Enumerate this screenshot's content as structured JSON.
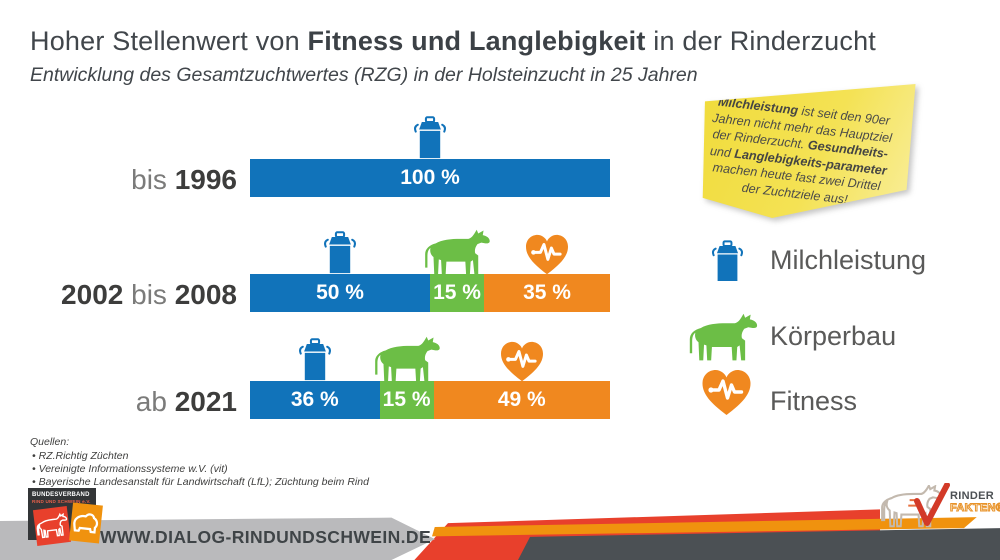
{
  "header": {
    "title_prefix": "Hoher Stellenwert von ",
    "title_bold": "Fitness und Langlebigkeit",
    "title_suffix": " in der Rinderzucht",
    "subtitle": "Entwicklung des Gesamtzuchtwertes (RZG) in der Holsteinzucht in 25 Jahren"
  },
  "note": {
    "segments": [
      {
        "text": "Milchleistung",
        "bold": true
      },
      {
        "text": " ist seit den 90er Jahren nicht mehr das Hauptziel der Rinderzucht. ",
        "bold": false
      },
      {
        "text": "Gesundheits-",
        "bold": true
      },
      {
        "text": " und ",
        "bold": false
      },
      {
        "text": "Langlebigkeits-parameter",
        "bold": true
      },
      {
        "text": " machen heute fast zwei Drittel der Zuchtziele aus!",
        "bold": false
      }
    ]
  },
  "chart_data": {
    "type": "bar",
    "orientation": "horizontal",
    "stacked": true,
    "title": "Entwicklung des Gesamtzuchtwertes (RZG) in der Holsteinzucht in 25 Jahren",
    "categories": [
      "bis 1996",
      "2002 bis 2008",
      "ab 2021"
    ],
    "series": [
      {
        "name": "Milchleistung",
        "color": "#1173ba",
        "icon": "milk-can-icon",
        "values": [
          100,
          50,
          36
        ]
      },
      {
        "name": "Körperbau",
        "color": "#6cbe46",
        "icon": "cow-icon",
        "values": [
          0,
          15,
          15
        ]
      },
      {
        "name": "Fitness",
        "color": "#f0881f",
        "icon": "heart-pulse-icon",
        "values": [
          0,
          35,
          49
        ]
      }
    ],
    "value_suffix": " %",
    "xlim": [
      0,
      100
    ],
    "grid": false,
    "legend_position": "right"
  },
  "row_labels": [
    [
      {
        "text": "bis ",
        "bold": false
      },
      {
        "text": "1996",
        "bold": true
      }
    ],
    [
      {
        "text": "2002",
        "bold": true
      },
      {
        "text": " bis ",
        "bold": false
      },
      {
        "text": "2008",
        "bold": true
      }
    ],
    [
      {
        "text": "ab ",
        "bold": false
      },
      {
        "text": "2021",
        "bold": true
      }
    ]
  ],
  "legend": {
    "items": [
      {
        "label": "Milchleistung",
        "icon": "milk-can-icon",
        "color": "#1173ba"
      },
      {
        "label": "Körperbau",
        "icon": "cow-icon",
        "color": "#6cbe46"
      },
      {
        "label": "Fitness",
        "icon": "heart-pulse-icon",
        "color": "#f0881f"
      }
    ]
  },
  "sources": {
    "heading": "Quellen:",
    "items": [
      "RZ.Richtig Züchten",
      "Vereinigte Informationssysteme w.V. (vit)",
      "Bayerische Landesanstalt für Landwirtschaft (LfL); Züchtung beim Rind"
    ]
  },
  "footer": {
    "url": "WWW.DIALOG-RINDUNDSCHWEIN.DE",
    "bundesverband_line1": "BUNDESVERBAND",
    "bundesverband_line2": "RIND UND SCHWEIN e.V.",
    "rinderfakten_line1": "RINDER",
    "rinderfakten_line2": "FAKTEN®"
  }
}
